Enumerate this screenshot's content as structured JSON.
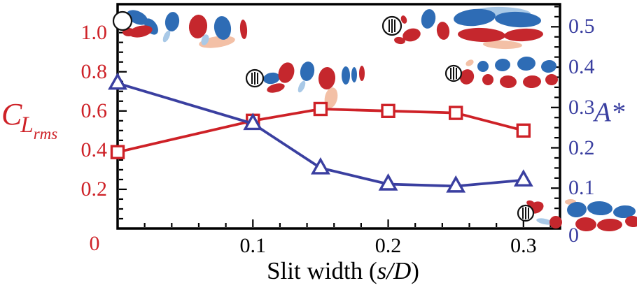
{
  "figure": {
    "xlabel_prefix": "Slit width (",
    "xlabel_math": "s/D",
    "xlabel_suffix": ")",
    "left_axis_title": {
      "main": "C",
      "sub1": "L",
      "sub2": "rms"
    },
    "right_axis_title": "A*",
    "origin_label": "0",
    "colors": {
      "cl_series": "#ce2127",
      "astar_series": "#3a3fa0",
      "axis": "#000000",
      "vortex_red": "#c5272d",
      "vortex_blue": "#2e6cb5",
      "vortex_red_light": "#f3c0a6",
      "vortex_blue_light": "#a9c9e7"
    }
  },
  "chart_data": {
    "type": "line",
    "title": "",
    "xlabel": "Slit width (s/D)",
    "grid": false,
    "legend": false,
    "x": [
      0,
      0.1,
      0.15,
      0.2,
      0.25,
      0.3
    ],
    "series": [
      {
        "name": "C_L_rms",
        "axis": "left",
        "marker": "square",
        "color": "#ce2127",
        "values": [
          0.39,
          0.55,
          0.61,
          0.6,
          0.59,
          0.5
        ]
      },
      {
        "name": "A*",
        "axis": "right",
        "marker": "triangle",
        "color": "#3a3fa0",
        "values": [
          0.36,
          0.26,
          0.15,
          0.11,
          0.105,
          0.12
        ]
      }
    ],
    "x_axis": {
      "range": [
        0,
        0.327
      ],
      "tick_labels": [
        {
          "text": "0.1",
          "value": 0.1
        },
        {
          "text": "0.2",
          "value": 0.2
        },
        {
          "text": "0.3",
          "value": 0.3
        }
      ],
      "minor_tick_step": 0.02
    },
    "left_axis": {
      "label": "CL_rms",
      "color": "#ce2127",
      "range": [
        0,
        1.145
      ],
      "tick_labels": [
        {
          "text": "1.0",
          "value": 1.0
        },
        {
          "text": "0.8",
          "value": 0.8
        },
        {
          "text": "0.6",
          "value": 0.6
        },
        {
          "text": "0.4",
          "value": 0.4
        },
        {
          "text": "0.2",
          "value": 0.2
        }
      ],
      "minor_tick_step": 0.05
    },
    "right_axis": {
      "label": "A*",
      "color": "#3a3fa0",
      "range": [
        0,
        0.556
      ],
      "tick_labels": [
        {
          "text": "0.5",
          "value": 0.5
        },
        {
          "text": "0.4",
          "value": 0.4
        },
        {
          "text": "0.3",
          "value": 0.3
        },
        {
          "text": "0.2",
          "value": 0.2
        },
        {
          "text": "0.1",
          "value": 0.1
        },
        {
          "text": "0",
          "value": 0
        }
      ],
      "minor_tick_step": 0.025
    }
  },
  "insets": [
    {
      "name": "wake-inset-no-slit-karman-street"
    },
    {
      "name": "wake-inset-slit-cylinder-2s-street"
    },
    {
      "name": "wake-inset-slit-cylinder-elongated-shear-layers"
    },
    {
      "name": "wake-inset-slit-cylinder-parallel-vortex-rows"
    },
    {
      "name": "wake-inset-slit-cylinder-deflected-wake"
    }
  ]
}
